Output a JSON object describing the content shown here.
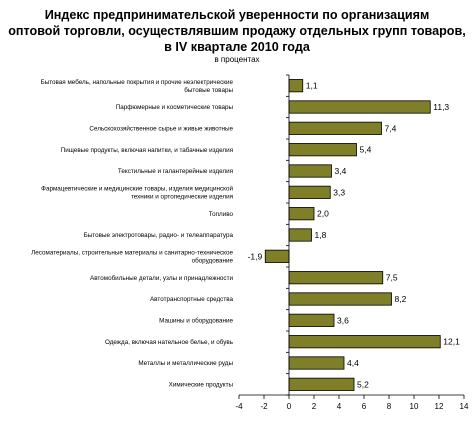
{
  "chart_data": {
    "type": "bar",
    "orientation": "horizontal",
    "title_lines": [
      "Индекс предпринимательской уверенности по организациям",
      "оптовой торговли, осуществлявшим продажу отдельных групп товаров,",
      "в IV квартале 2010 года"
    ],
    "subtitle": "в процентах",
    "bar_color": "#7f7f2a",
    "categories": [
      {
        "label_lines": [
          "Бытовая мебель, напольные покрытия и прочие неэлектрические",
          "бытовые товары"
        ]
      },
      {
        "label_lines": [
          "Парфюмерные и косметические товары"
        ]
      },
      {
        "label_lines": [
          "Сельскохозяйственное сырье и живые животные"
        ]
      },
      {
        "label_lines": [
          "Пищевые продукты, включая напитки, и табачные изделия"
        ]
      },
      {
        "label_lines": [
          "Текстильные и галантерейные изделия"
        ]
      },
      {
        "label_lines": [
          "Фармацевтические и медицинские товары, изделия медицинской",
          "техники и ортопедические изделия"
        ]
      },
      {
        "label_lines": [
          "Топливо"
        ]
      },
      {
        "label_lines": [
          "Бытовые электротовары, радио- и телеаппаратура"
        ]
      },
      {
        "label_lines": [
          "Лесоматериалы, строительные материалы и санитарно-техническое",
          "оборудование"
        ]
      },
      {
        "label_lines": [
          "Автомобильные детали, узлы и принадлежности"
        ]
      },
      {
        "label_lines": [
          "Автотранспортные средства"
        ]
      },
      {
        "label_lines": [
          "Машины и оборудование"
        ]
      },
      {
        "label_lines": [
          "Одежда, включая нательное белье, и обувь"
        ]
      },
      {
        "label_lines": [
          "Металлы и металлические руды"
        ]
      },
      {
        "label_lines": [
          "Химические продукты"
        ]
      }
    ],
    "values": [
      1.1,
      11.3,
      7.4,
      5.4,
      3.4,
      3.3,
      2.0,
      1.8,
      -1.9,
      7.5,
      8.2,
      3.6,
      12.1,
      4.4,
      5.2
    ],
    "value_labels": [
      "1,1",
      "11,3",
      "7,4",
      "5,4",
      "3,4",
      "3,3",
      "2,0",
      "1,8",
      "-1,9",
      "7,5",
      "8,2",
      "3,6",
      "12,1",
      "4,4",
      "5,2"
    ],
    "xlim": [
      -4,
      14
    ],
    "xticks": [
      -4,
      -2,
      0,
      2,
      4,
      6,
      8,
      10,
      12,
      14
    ],
    "grid": false,
    "legend": "none"
  }
}
